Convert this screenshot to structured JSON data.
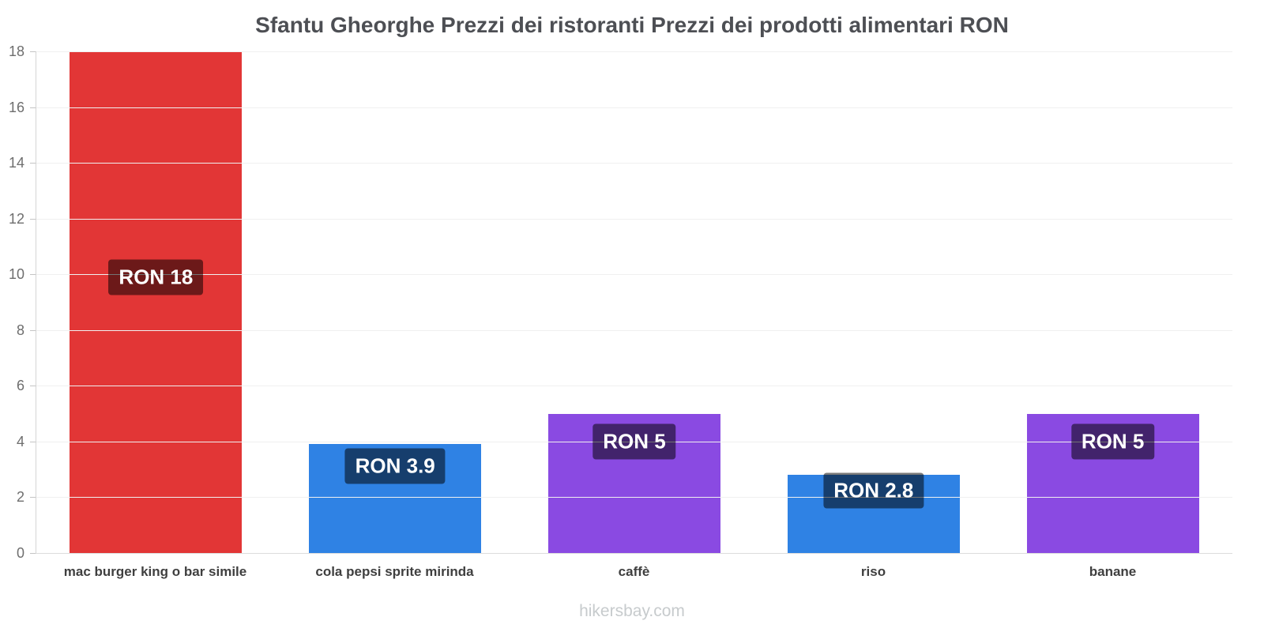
{
  "title": "Sfantu Gheorghe Prezzi dei ristoranti Prezzi dei prodotti alimentari RON",
  "footer": "hikersbay.com",
  "chart_data": {
    "type": "bar",
    "title": "Sfantu Gheorghe Prezzi dei ristoranti Prezzi dei prodotti alimentari RON",
    "categories": [
      "mac burger king o bar simile",
      "cola pepsi sprite mirinda",
      "caffè",
      "riso",
      "banane"
    ],
    "values": [
      18,
      3.9,
      5,
      2.8,
      5
    ],
    "value_labels": [
      "RON 18",
      "RON 3.9",
      "RON 5",
      "RON 2.8",
      "RON 5"
    ],
    "bar_colors": [
      "#e23636",
      "#2f82e4",
      "#8a4ae2",
      "#2f82e4",
      "#8a4ae2"
    ],
    "currency": "RON",
    "xlabel": "",
    "ylabel": "",
    "ylim": [
      0,
      18
    ],
    "yticks": [
      0,
      2,
      4,
      6,
      8,
      10,
      12,
      14,
      16,
      18
    ],
    "grid": false,
    "legend": false
  },
  "colors": {
    "value_label_overlay": "rgba(0,0,0,0.52)",
    "title_color": "#4d4f54",
    "tick_color": "#6e6e6e",
    "category_color": "#3f3f3f",
    "footer_color": "#c7cbcd",
    "axis_line": "#d4d4d4"
  }
}
